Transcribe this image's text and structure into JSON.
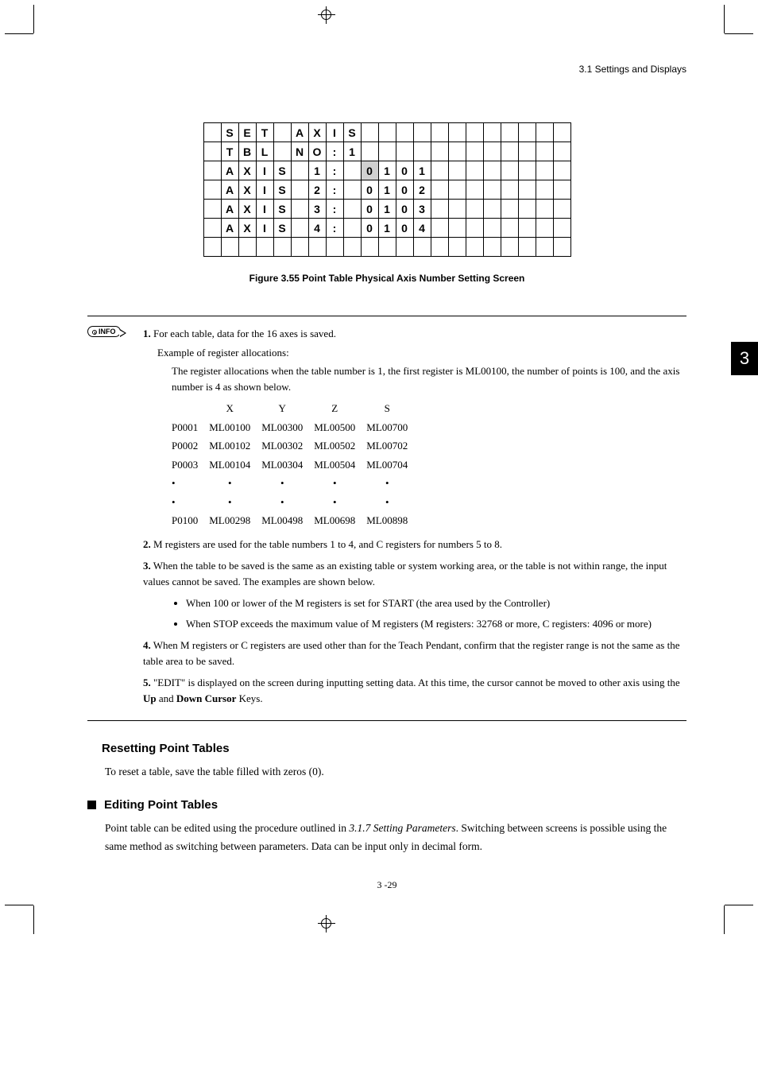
{
  "header": {
    "breadcrumb": "3.1  Settings and Displays"
  },
  "grid": {
    "rows": [
      [
        "",
        "S",
        "E",
        "T",
        "",
        "A",
        "X",
        "I",
        "S",
        "",
        "",
        "",
        "",
        "",
        "",
        "",
        "",
        "",
        "",
        "",
        ""
      ],
      [
        "",
        "T",
        "B",
        "L",
        "",
        "N",
        "O",
        ":",
        "1",
        "",
        "",
        "",
        "",
        "",
        "",
        "",
        "",
        "",
        "",
        "",
        ""
      ],
      [
        "",
        "A",
        "X",
        "I",
        "S",
        "",
        "1",
        ":",
        "",
        "0",
        "1",
        "0",
        "1",
        "",
        "",
        "",
        "",
        "",
        "",
        "",
        ""
      ],
      [
        "",
        "A",
        "X",
        "I",
        "S",
        "",
        "2",
        ":",
        "",
        "0",
        "1",
        "0",
        "2",
        "",
        "",
        "",
        "",
        "",
        "",
        "",
        ""
      ],
      [
        "",
        "A",
        "X",
        "I",
        "S",
        "",
        "3",
        ":",
        "",
        "0",
        "1",
        "0",
        "3",
        "",
        "",
        "",
        "",
        "",
        "",
        "",
        ""
      ],
      [
        "",
        "A",
        "X",
        "I",
        "S",
        "",
        "4",
        ":",
        "",
        "0",
        "1",
        "0",
        "4",
        "",
        "",
        "",
        "",
        "",
        "",
        "",
        ""
      ],
      [
        "",
        "",
        "",
        "",
        "",
        "",
        "",
        "",
        "",
        "",
        "",
        "",
        "",
        "",
        "",
        "",
        "",
        "",
        "",
        "",
        ""
      ]
    ],
    "shaded": {
      "row": 2,
      "col": 9
    }
  },
  "figure_caption": "Figure 3.55   Point Table Physical Axis Number Setting Screen",
  "info_badge": "INFO",
  "page_tab": "3",
  "info": {
    "item1": {
      "lead": "For each table, data for the 16 axes is saved.",
      "sub": "Example of register allocations:",
      "desc": "The register allocations when the table number is 1, the first register is ML00100, the number of points is 100, and the axis number is 4 as shown below."
    },
    "reg_table": {
      "headers": [
        "",
        "X",
        "Y",
        "Z",
        "S"
      ],
      "rows": [
        [
          "P0001",
          "ML00100",
          "ML00300",
          "ML00500",
          "ML00700"
        ],
        [
          "P0002",
          "ML00102",
          "ML00302",
          "ML00502",
          "ML00702"
        ],
        [
          "P0003",
          "ML00104",
          "ML00304",
          "ML00504",
          "ML00704"
        ],
        [
          "•",
          "•",
          "•",
          "•",
          "•"
        ],
        [
          "•",
          "•",
          "•",
          "•",
          "•"
        ],
        [
          "P0100",
          "ML00298",
          "ML00498",
          "ML00698",
          "ML00898"
        ]
      ]
    },
    "item2": "M registers are used for the table numbers 1 to 4, and C registers for numbers 5 to 8.",
    "item3": "When the table to be saved is the same as an existing table or system working area, or the table is not within range, the input values cannot be saved. The examples are shown below.",
    "bullets": [
      "When 100 or lower of the M registers is set for START (the area used by the Controller)",
      "When STOP exceeds the maximum value of M registers (M registers: 32768 or more, C registers: 4096 or more)"
    ],
    "item4": "When M registers or C registers are used other than for the Teach Pendant, confirm that the register range is not the same as the table area to be saved.",
    "item5_a": "\"EDIT\" is displayed on the screen during inputting setting data. At this time, the cursor cannot be moved to other axis using the ",
    "item5_up": "Up",
    "item5_mid": " and ",
    "item5_down": "Down Cursor",
    "item5_b": " Keys."
  },
  "resetting": {
    "heading": "Resetting Point Tables",
    "body": "To reset a table, save the table filled with zeros (0)."
  },
  "editing": {
    "heading": "Editing Point Tables",
    "body_a": "Point table can be edited using the procedure outlined in ",
    "body_italic": "3.1.7 Setting Parameters",
    "body_b": ". Switching between screens is possible using the same method as switching between parameters. Data can be input only in decimal form."
  },
  "page_number": "3 -29"
}
